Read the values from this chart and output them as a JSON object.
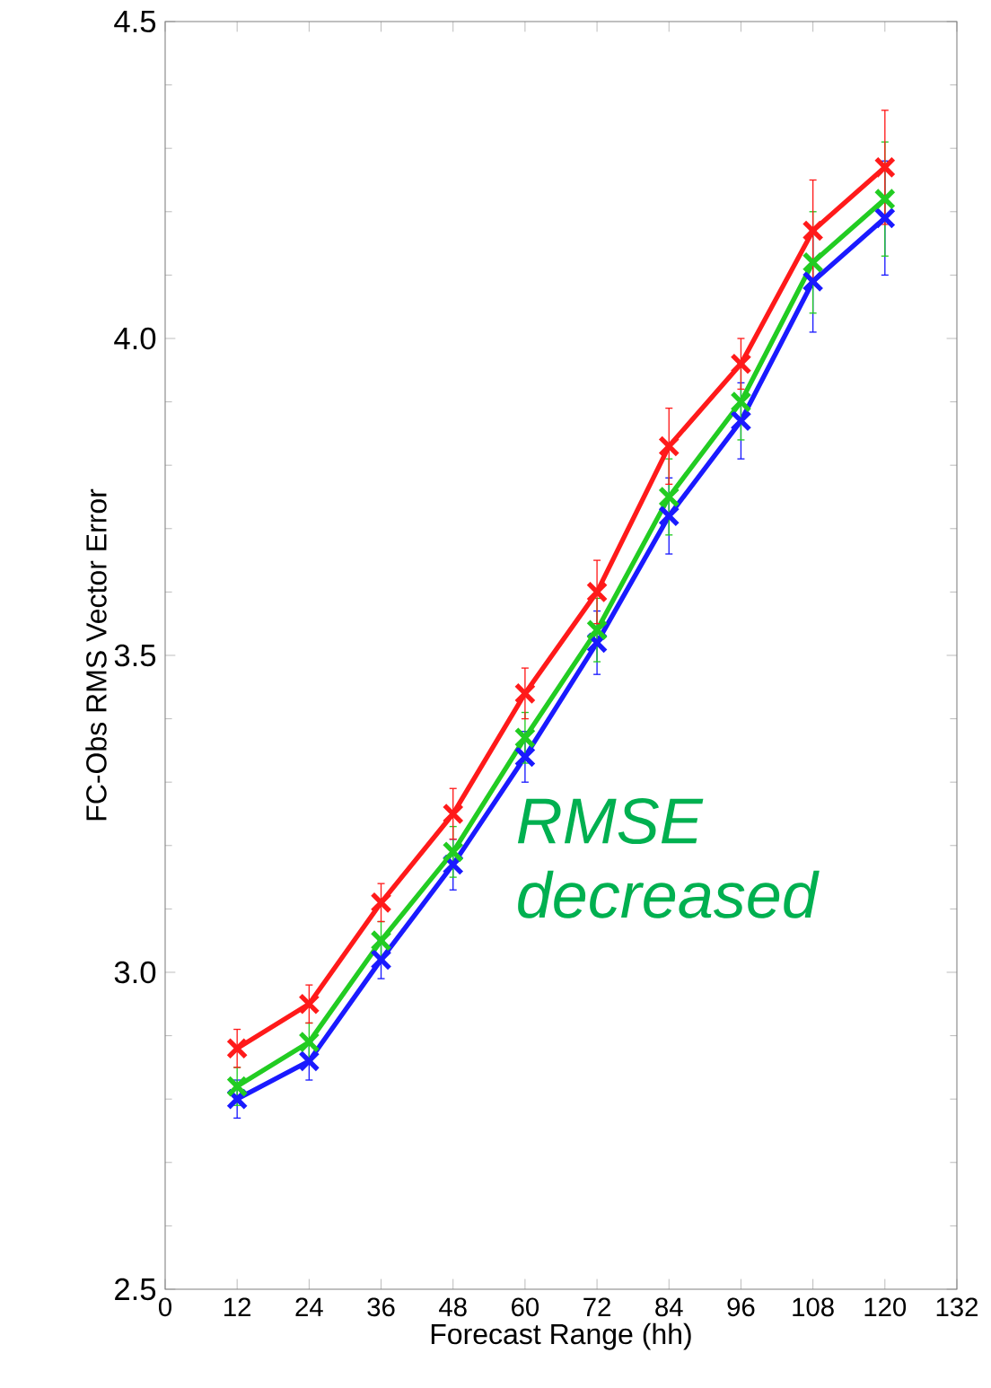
{
  "chart_data": {
    "type": "line",
    "xlabel": "Forecast Range (hh)",
    "ylabel": "FC-Obs RMS Vector Error",
    "x": [
      12,
      24,
      36,
      48,
      60,
      72,
      84,
      96,
      108,
      120
    ],
    "series": [
      {
        "color": "#ff1a1a",
        "values": [
          2.88,
          2.95,
          3.11,
          3.25,
          3.44,
          3.6,
          3.83,
          3.96,
          4.17,
          4.27
        ],
        "errors": [
          0.03,
          0.03,
          0.03,
          0.04,
          0.04,
          0.05,
          0.06,
          0.04,
          0.08,
          0.09
        ]
      },
      {
        "color": "#22cc22",
        "values": [
          2.82,
          2.89,
          3.05,
          3.19,
          3.37,
          3.54,
          3.75,
          3.9,
          4.12,
          4.22
        ],
        "errors": [
          0.03,
          0.03,
          0.03,
          0.04,
          0.04,
          0.05,
          0.06,
          0.06,
          0.08,
          0.09
        ]
      },
      {
        "color": "#1a1aff",
        "values": [
          2.8,
          2.86,
          3.02,
          3.17,
          3.34,
          3.52,
          3.72,
          3.87,
          4.09,
          4.19
        ],
        "errors": [
          0.03,
          0.03,
          0.03,
          0.04,
          0.04,
          0.05,
          0.06,
          0.06,
          0.08,
          0.09
        ]
      }
    ],
    "xlim": [
      0,
      132
    ],
    "xticks": [
      0,
      12,
      24,
      36,
      48,
      60,
      72,
      84,
      96,
      108,
      120,
      132
    ],
    "ylim": [
      2.5,
      4.5
    ],
    "yticks": [
      {
        "value": 2.5,
        "label": "2.5"
      },
      {
        "value": 3.0,
        "label": "3.0"
      },
      {
        "value": 3.5,
        "label": "3.5"
      },
      {
        "value": 4.0,
        "label": "4.0"
      },
      {
        "value": 4.5,
        "label": "4.5"
      }
    ],
    "marker": "cross",
    "line_style": "solid",
    "grid": false,
    "annotations": [
      "RMSE decreased"
    ]
  }
}
